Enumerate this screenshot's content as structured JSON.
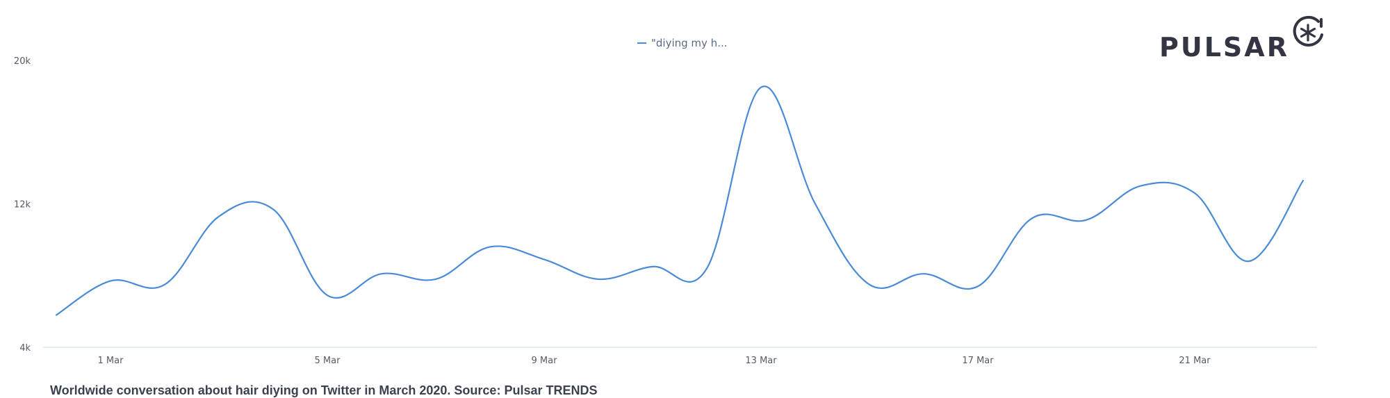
{
  "brand": {
    "name": "PULSAR",
    "logo_icon": "asterisk-circle-icon",
    "color": "#333642"
  },
  "caption": "Worldwide conversation about hair diying on Twitter in March 2020. Source: Pulsar TRENDS",
  "chart_data": {
    "type": "line",
    "title": "",
    "xlabel": "",
    "ylabel": "",
    "ylim": [
      4000,
      20000
    ],
    "yticks": [
      {
        "value": 4000,
        "label": "4k"
      },
      {
        "value": 12000,
        "label": "12k"
      },
      {
        "value": 20000,
        "label": "20k"
      }
    ],
    "x_range": [
      "2020-02-28",
      "2020-03-24"
    ],
    "xticks": [
      {
        "date": "2020-03-01",
        "label": "1 Mar"
      },
      {
        "date": "2020-03-05",
        "label": "5 Mar"
      },
      {
        "date": "2020-03-09",
        "label": "9 Mar"
      },
      {
        "date": "2020-03-13",
        "label": "13 Mar"
      },
      {
        "date": "2020-03-17",
        "label": "17 Mar"
      },
      {
        "date": "2020-03-21",
        "label": "21 Mar"
      }
    ],
    "grid": false,
    "legend_position": "top-center",
    "series": [
      {
        "name": "\"diying my h...",
        "color": "#4a8ad6",
        "points": [
          {
            "x": "2020-02-29",
            "y": 5800
          },
          {
            "x": "2020-03-01",
            "y": 7700
          },
          {
            "x": "2020-03-02",
            "y": 7500
          },
          {
            "x": "2020-03-03",
            "y": 11300
          },
          {
            "x": "2020-03-04",
            "y": 11700
          },
          {
            "x": "2020-03-05",
            "y": 6900
          },
          {
            "x": "2020-03-06",
            "y": 8100
          },
          {
            "x": "2020-03-07",
            "y": 7800
          },
          {
            "x": "2020-03-08",
            "y": 9600
          },
          {
            "x": "2020-03-09",
            "y": 8900
          },
          {
            "x": "2020-03-10",
            "y": 7800
          },
          {
            "x": "2020-03-11",
            "y": 8500
          },
          {
            "x": "2020-03-12",
            "y": 8400
          },
          {
            "x": "2020-03-13",
            "y": 18500
          },
          {
            "x": "2020-03-14",
            "y": 12000
          },
          {
            "x": "2020-03-15",
            "y": 7500
          },
          {
            "x": "2020-03-16",
            "y": 8100
          },
          {
            "x": "2020-03-17",
            "y": 7400
          },
          {
            "x": "2020-03-18",
            "y": 11200
          },
          {
            "x": "2020-03-19",
            "y": 11100
          },
          {
            "x": "2020-03-20",
            "y": 13000
          },
          {
            "x": "2020-03-21",
            "y": 12600
          },
          {
            "x": "2020-03-22",
            "y": 8800
          },
          {
            "x": "2020-03-23",
            "y": 13300
          }
        ]
      }
    ]
  }
}
